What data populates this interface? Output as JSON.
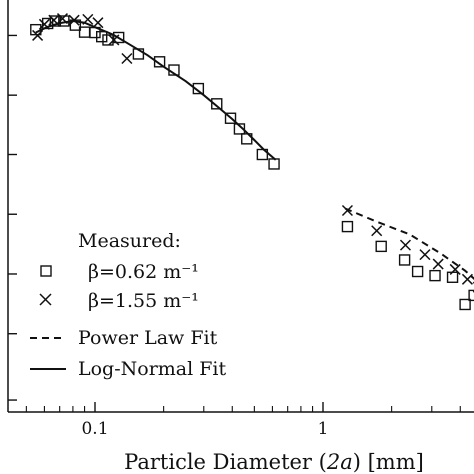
{
  "chart_data": {
    "type": "scatter",
    "xscale": "log",
    "xlim": [
      0.04,
      1.4
    ],
    "x2lim": [
      0.9,
      5.5
    ],
    "ylim": [
      0,
      1
    ],
    "grid": false,
    "legend_placement": "bottom-left",
    "xlabel_parts": [
      "Particle Diameter (",
      "2a",
      ") [mm]"
    ],
    "x_tick_labels": [
      {
        "value": 0.1,
        "label": "0.1"
      },
      {
        "value": 1,
        "label": "1"
      }
    ],
    "legend": {
      "title": "Measured:",
      "entries": [
        {
          "marker": "square",
          "label": "β=0.62 m⁻¹"
        },
        {
          "marker": "x",
          "label": "β=1.55 m⁻¹"
        },
        {
          "line": "dashed",
          "label": "Power Law Fit"
        },
        {
          "line": "solid",
          "label": "Log-Normal Fit"
        }
      ]
    },
    "series": [
      {
        "marker": "square",
        "panel": "left",
        "points": [
          [
            0.055,
            0.928
          ],
          [
            0.062,
            0.943
          ],
          [
            0.067,
            0.949
          ],
          [
            0.073,
            0.949
          ],
          [
            0.082,
            0.939
          ],
          [
            0.09,
            0.922
          ],
          [
            0.1,
            0.921
          ],
          [
            0.107,
            0.911
          ],
          [
            0.114,
            0.903
          ],
          [
            0.127,
            0.909
          ],
          [
            0.155,
            0.869
          ],
          [
            0.192,
            0.85
          ],
          [
            0.222,
            0.83
          ],
          [
            0.284,
            0.785
          ],
          [
            0.342,
            0.748
          ],
          [
            0.393,
            0.713
          ],
          [
            0.43,
            0.687
          ],
          [
            0.463,
            0.663
          ],
          [
            0.542,
            0.625
          ],
          [
            0.61,
            0.602
          ]
        ]
      },
      {
        "marker": "x",
        "panel": "left",
        "points": [
          [
            0.056,
            0.914
          ],
          [
            0.06,
            0.941
          ],
          [
            0.066,
            0.951
          ],
          [
            0.072,
            0.955
          ],
          [
            0.081,
            0.951
          ],
          [
            0.093,
            0.953
          ],
          [
            0.103,
            0.945
          ],
          [
            0.121,
            0.903
          ],
          [
            0.138,
            0.858
          ]
        ]
      },
      {
        "marker": "square",
        "panel": "right",
        "points": [
          [
            1.28,
            0.45
          ],
          [
            1.8,
            0.402
          ],
          [
            2.28,
            0.369
          ],
          [
            2.6,
            0.341
          ],
          [
            3.1,
            0.331
          ],
          [
            3.7,
            0.327
          ],
          [
            4.2,
            0.261
          ],
          [
            4.6,
            0.283
          ]
        ]
      },
      {
        "marker": "x",
        "panel": "right",
        "points": [
          [
            1.28,
            0.489
          ],
          [
            1.72,
            0.44
          ],
          [
            2.3,
            0.405
          ],
          [
            2.8,
            0.382
          ],
          [
            3.2,
            0.359
          ],
          [
            3.8,
            0.346
          ],
          [
            4.3,
            0.322
          ],
          [
            4.8,
            0.303
          ]
        ]
      }
    ],
    "fits": [
      {
        "name": "Power Law Fit",
        "style": "dashed",
        "panel": "right",
        "points": [
          [
            1.25,
            0.494
          ],
          [
            1.7,
            0.463
          ],
          [
            2.4,
            0.431
          ],
          [
            3.3,
            0.384
          ],
          [
            4.2,
            0.343
          ],
          [
            5.4,
            0.289
          ]
        ]
      },
      {
        "name": "Log-Normal Fit",
        "style": "solid",
        "panel": "left",
        "points": [
          [
            0.055,
            0.921
          ],
          [
            0.062,
            0.935
          ],
          [
            0.07,
            0.944
          ],
          [
            0.08,
            0.949
          ],
          [
            0.09,
            0.945
          ],
          [
            0.1,
            0.934
          ],
          [
            0.12,
            0.916
          ],
          [
            0.14,
            0.894
          ],
          [
            0.17,
            0.866
          ],
          [
            0.2,
            0.838
          ],
          [
            0.25,
            0.803
          ],
          [
            0.3,
            0.769
          ],
          [
            0.35,
            0.738
          ],
          [
            0.4,
            0.711
          ],
          [
            0.45,
            0.685
          ],
          [
            0.5,
            0.66
          ],
          [
            0.55,
            0.637
          ],
          [
            0.62,
            0.612
          ]
        ]
      }
    ]
  }
}
